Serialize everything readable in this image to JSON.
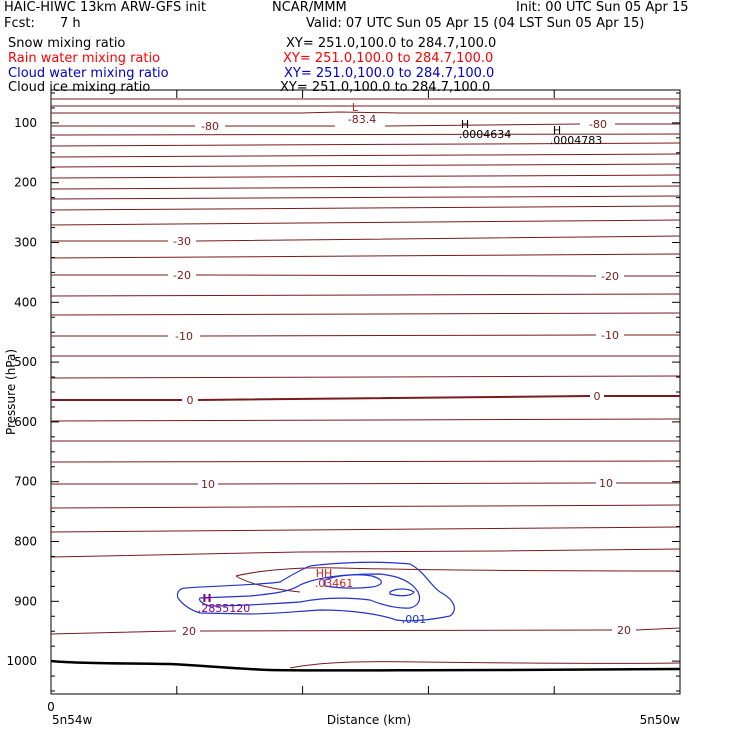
{
  "header": {
    "model": "HAIC-HIWC 13km ARW-GFS init",
    "center": "NCAR/MMM",
    "init": "Init: 00 UTC Sun 05 Apr 15",
    "fcst_label": "Fcst:",
    "fcst_value": "7 h",
    "valid": "Valid: 07 UTC Sun 05 Apr 15 (04 LST Sun 05 Apr 15)"
  },
  "fields": [
    {
      "name": "Snow mixing ratio",
      "xy": "XY= 251.0,100.0 to 284.7,100.0",
      "color": "#000000"
    },
    {
      "name": "Rain water mixing ratio",
      "xy": "XY= 251.0,100.0 to 284.7,100.0",
      "color": "#ff0000"
    },
    {
      "name": "Cloud water mixing ratio",
      "xy": "XY= 251.0,100.0 to 284.7,100.0",
      "color": "#0000cc"
    },
    {
      "name": "Cloud ice mixing ratio",
      "xy": "XY= 251.0,100.0 to 284.7,100.0",
      "color": "#000000"
    }
  ],
  "chart_data": {
    "type": "contour",
    "title": "",
    "xlabel": "Distance (km)",
    "ylabel": "Pressure (hPa)",
    "x_ticks": [
      "0"
    ],
    "x_left_label": "5n54w",
    "x_right_label": "5n50w",
    "y_ticks": [
      100,
      200,
      300,
      400,
      500,
      600,
      700,
      800,
      900,
      1000
    ],
    "ylim": [
      1055,
      45
    ],
    "grid": false,
    "colors": {
      "temperature": "#7a1a1a",
      "cloud_water": "#2233cc",
      "cloud_ice": "#880088",
      "rain": "#cc2222",
      "ground": "#000000"
    },
    "temperature_isotherm_labels": [
      {
        "text": "-80",
        "p": 126
      },
      {
        "text": "-80",
        "p": 123
      },
      {
        "text": "-30",
        "p": 241
      },
      {
        "text": "-20",
        "p": 275
      },
      {
        "text": "-20",
        "p": 276
      },
      {
        "text": "-10",
        "p": 336
      },
      {
        "text": "-10",
        "p": 335
      },
      {
        "text": "0",
        "p": 400
      },
      {
        "text": "0",
        "p": 395
      },
      {
        "text": "10",
        "p": 484
      },
      {
        "text": "10",
        "p": 483
      },
      {
        "text": "20",
        "p": 631
      },
      {
        "text": "20",
        "p": 630
      }
    ],
    "extrema": [
      {
        "type": "L",
        "value": "-83.4",
        "color": "#cc2222"
      },
      {
        "type": "H",
        "value": ".0004634",
        "color": "#000000"
      },
      {
        "type": "H",
        "value": ".0004783",
        "color": "#000000"
      },
      {
        "type": "HH",
        "value": ".03461",
        "color": "#cc2222"
      },
      {
        "type": "H",
        "value": ".2855120",
        "color": "#880088"
      }
    ],
    "cloud_labels": [
      ".001"
    ]
  }
}
